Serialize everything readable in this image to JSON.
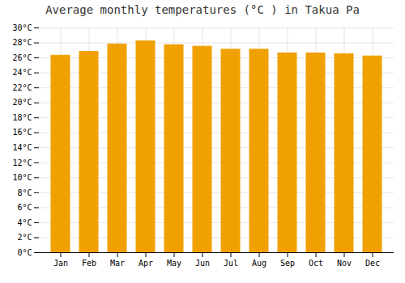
{
  "chart_data": {
    "type": "bar",
    "title": "Average monthly temperatures (°C ) in Takua Pa",
    "categories": [
      "Jan",
      "Feb",
      "Mar",
      "Apr",
      "May",
      "Jun",
      "Jul",
      "Aug",
      "Sep",
      "Oct",
      "Nov",
      "Dec"
    ],
    "values": [
      26.3,
      26.8,
      27.8,
      28.2,
      27.7,
      27.5,
      27.1,
      27.1,
      26.6,
      26.6,
      26.5,
      26.2
    ],
    "color": "#F0A000",
    "ylim": [
      0,
      30
    ],
    "yticks": [
      {
        "value": 0,
        "label": "0°C"
      },
      {
        "value": 2,
        "label": "2°C"
      },
      {
        "value": 4,
        "label": "4°C"
      },
      {
        "value": 6,
        "label": "6°C"
      },
      {
        "value": 8,
        "label": "8°C"
      },
      {
        "value": 10,
        "label": "10°C"
      },
      {
        "value": 12,
        "label": "12°C"
      },
      {
        "value": 14,
        "label": "14°C"
      },
      {
        "value": 16,
        "label": "16°C"
      },
      {
        "value": 18,
        "label": "18°C"
      },
      {
        "value": 20,
        "label": "20°C"
      },
      {
        "value": 22,
        "label": "22°C"
      },
      {
        "value": 24,
        "label": "24°C"
      },
      {
        "value": 26,
        "label": "26°C"
      },
      {
        "value": 28,
        "label": "28°C"
      },
      {
        "value": 30,
        "label": "30°C"
      }
    ],
    "grid": true
  }
}
